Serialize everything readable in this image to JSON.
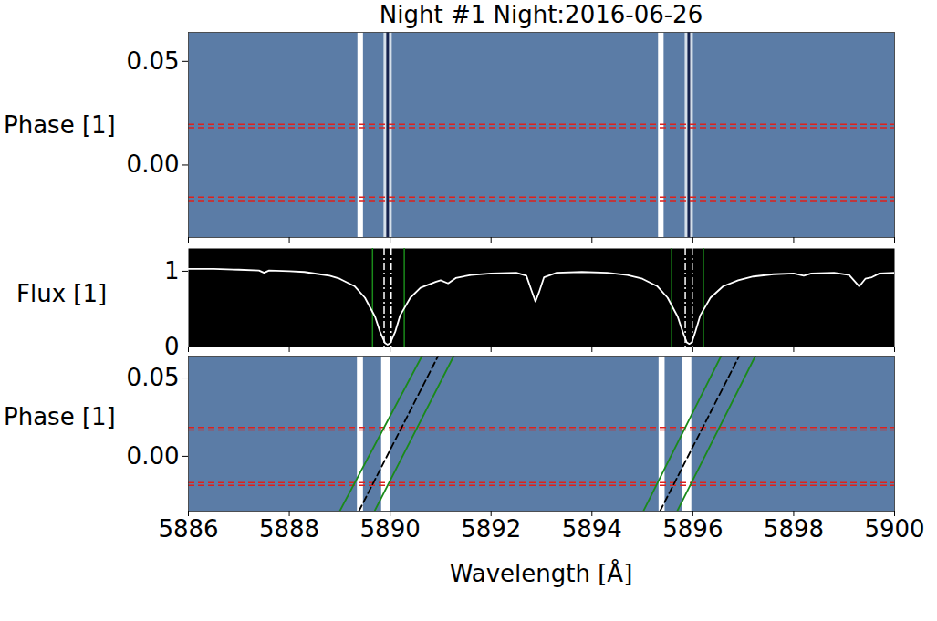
{
  "chart_data": [
    {
      "type": "heatmap",
      "title": "Night #1 Night:2016-06-26",
      "ylabel": "Phase [1]",
      "xlim": [
        5886,
        5900
      ],
      "xticks": [
        5886,
        5888,
        5890,
        5892,
        5894,
        5896,
        5898,
        5900
      ],
      "ylim": [
        -0.035,
        0.064
      ],
      "yticks": [
        {
          "value": 0.0,
          "label": "0.00"
        },
        {
          "value": 0.05,
          "label": "0.05"
        }
      ],
      "tick_labels": "y",
      "color": "#5b7ca6",
      "masked_ranges": [
        [
          5889.36,
          5889.47
        ],
        [
          5895.32,
          5895.43
        ]
      ],
      "absorption_lines": [
        5889.95,
        5895.92
      ],
      "transit_phases": [
        -0.0172,
        -0.0155,
        0.018,
        0.0197
      ]
    },
    {
      "type": "line",
      "ylabel": "Flux [1]",
      "xlim": [
        5886,
        5900
      ],
      "xticks": [
        5886,
        5888,
        5890,
        5892,
        5894,
        5896,
        5898,
        5900
      ],
      "ylim": [
        0,
        1.3
      ],
      "yticks": [
        0,
        1
      ],
      "tick_labels": "y",
      "color": "#ffffff",
      "x": [
        5886.0,
        5886.5,
        5887.0,
        5887.4,
        5887.5,
        5887.6,
        5888.0,
        5888.3,
        5888.6,
        5888.8,
        5889.0,
        5889.3,
        5889.5,
        5889.7,
        5889.8,
        5889.9,
        5889.95,
        5890.0,
        5890.1,
        5890.2,
        5890.4,
        5890.6,
        5890.9,
        5891.0,
        5891.15,
        5891.3,
        5891.6,
        5892.0,
        5892.5,
        5892.7,
        5892.8,
        5892.88,
        5892.95,
        5893.05,
        5893.3,
        5893.8,
        5894.3,
        5894.7,
        5895.0,
        5895.3,
        5895.5,
        5895.7,
        5895.8,
        5895.88,
        5895.93,
        5895.98,
        5896.05,
        5896.15,
        5896.35,
        5896.6,
        5896.9,
        5897.2,
        5897.6,
        5898.0,
        5898.2,
        5898.35,
        5898.8,
        5899.1,
        5899.3,
        5899.42,
        5899.55,
        5899.7,
        5900.0
      ],
      "values": [
        1.03,
        1.03,
        1.02,
        1.01,
        0.98,
        1.01,
        1.0,
        0.99,
        0.96,
        0.94,
        0.9,
        0.8,
        0.65,
        0.4,
        0.2,
        0.05,
        0.03,
        0.05,
        0.2,
        0.42,
        0.65,
        0.78,
        0.86,
        0.88,
        0.84,
        0.91,
        0.95,
        0.97,
        0.98,
        0.94,
        0.75,
        0.6,
        0.72,
        0.92,
        0.98,
        0.99,
        0.98,
        0.95,
        0.9,
        0.8,
        0.65,
        0.4,
        0.2,
        0.06,
        0.04,
        0.06,
        0.2,
        0.42,
        0.65,
        0.8,
        0.88,
        0.93,
        0.96,
        0.97,
        0.94,
        0.97,
        0.98,
        0.95,
        0.8,
        0.9,
        0.92,
        0.97,
        0.98
      ],
      "integration_windows": [
        [
          5889.65,
          5890.28
        ],
        [
          5895.58,
          5896.21
        ]
      ],
      "line_cores": [
        5889.88,
        5890.02,
        5895.85,
        5895.99
      ]
    },
    {
      "type": "heatmap",
      "xlabel": "Wavelength [Å]",
      "ylabel": "Phase [1]",
      "xlim": [
        5886,
        5900
      ],
      "xticks": [
        5886,
        5888,
        5890,
        5892,
        5894,
        5896,
        5898,
        5900
      ],
      "ylim": [
        -0.035,
        0.064
      ],
      "yticks": [
        {
          "value": 0.0,
          "label": "0.00"
        },
        {
          "value": 0.05,
          "label": "0.05"
        }
      ],
      "color": "#5b7ca6",
      "masked_ranges": [
        [
          5889.35,
          5889.47
        ],
        [
          5889.83,
          5890.01
        ],
        [
          5895.33,
          5895.45
        ],
        [
          5895.8,
          5895.98
        ]
      ],
      "transit_phases": [
        -0.0185,
        -0.0168,
        0.0168,
        0.0185
      ],
      "trajectories": [
        {
          "x": [
            5889.0,
            5890.63
          ],
          "y": [
            -0.035,
            0.064
          ],
          "color": "#1a8a1a",
          "line_style": "solid"
        },
        {
          "x": [
            5889.38,
            5890.95
          ],
          "y": [
            -0.035,
            0.064
          ],
          "color": "#000000",
          "line_style": "dashed"
        },
        {
          "x": [
            5889.69,
            5891.26
          ],
          "y": [
            -0.035,
            0.064
          ],
          "color": "#1a8a1a",
          "line_style": "solid"
        },
        {
          "x": [
            5895.02,
            5896.56
          ],
          "y": [
            -0.035,
            0.064
          ],
          "color": "#1a8a1a",
          "line_style": "solid"
        },
        {
          "x": [
            5895.35,
            5896.92
          ],
          "y": [
            -0.035,
            0.064
          ],
          "color": "#000000",
          "line_style": "dashed"
        },
        {
          "x": [
            5895.69,
            5897.24
          ],
          "y": [
            -0.035,
            0.064
          ],
          "color": "#1a8a1a",
          "line_style": "solid"
        }
      ]
    }
  ]
}
